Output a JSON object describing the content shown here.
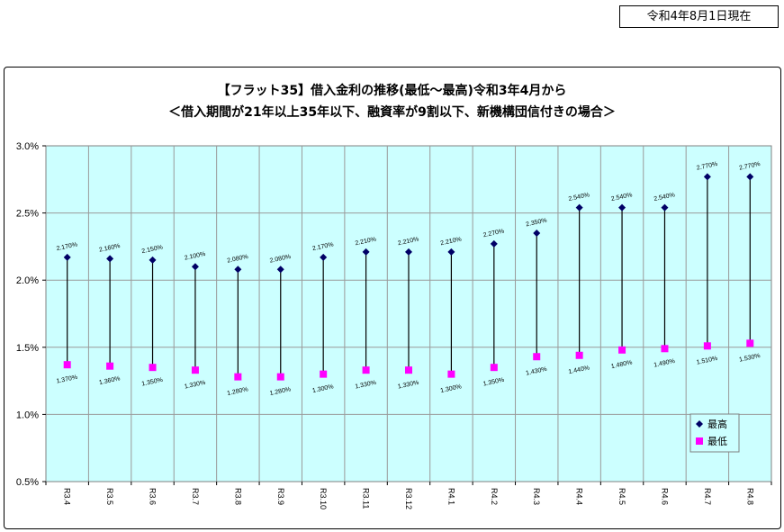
{
  "header": {
    "date_label": "令和4年8月1日現在"
  },
  "chart_data": {
    "type": "line",
    "title": "【フラット35】借入金利の推移(最低〜最高)令和3年4月から",
    "subtitle": "＜借入期間が21年以上35年以下、融資率が9割以下、新機構団信付きの場合＞",
    "categories": [
      "R3.4",
      "R3.5",
      "R3.6",
      "R3.7",
      "R3.8",
      "R3.9",
      "R3.10",
      "R3.11",
      "R3.12",
      "R4.1",
      "R4.2",
      "R4.3",
      "R4.4",
      "R4.5",
      "R4.6",
      "R4.7",
      "R4.8"
    ],
    "series": [
      {
        "name": "最高",
        "color": "#000066",
        "marker": "diamond",
        "values": [
          2.17,
          2.16,
          2.15,
          2.1,
          2.08,
          2.08,
          2.17,
          2.21,
          2.21,
          2.21,
          2.27,
          2.35,
          2.54,
          2.54,
          2.54,
          2.77,
          2.77
        ],
        "labels": [
          "2.170%",
          "2.160%",
          "2.150%",
          "2.100%",
          "2.080%",
          "2.080%",
          "2.170%",
          "2.210%",
          "2.210%",
          "2.210%",
          "2.270%",
          "2.350%",
          "2.540%",
          "2.540%",
          "2.540%",
          "2.770%",
          "2.770%"
        ]
      },
      {
        "name": "最低",
        "color": "#ff00ff",
        "marker": "square",
        "values": [
          1.37,
          1.36,
          1.35,
          1.33,
          1.28,
          1.28,
          1.3,
          1.33,
          1.33,
          1.3,
          1.35,
          1.43,
          1.44,
          1.48,
          1.49,
          1.51,
          1.53
        ],
        "labels": [
          "1.370%",
          "1.360%",
          "1.350%",
          "1.330%",
          "1.280%",
          "1.280%",
          "1.300%",
          "1.330%",
          "1.330%",
          "1.300%",
          "1.350%",
          "1.430%",
          "1.440%",
          "1.480%",
          "1.490%",
          "1.510%",
          "1.530%"
        ]
      }
    ],
    "yticks": [
      "3.0%",
      "2.5%",
      "2.0%",
      "1.5%",
      "1.0%",
      "0.5%"
    ],
    "ylim": [
      0.5,
      3.0
    ],
    "grid": true,
    "plot_bg": "#ccffff",
    "legend_position": "bottom-right"
  }
}
